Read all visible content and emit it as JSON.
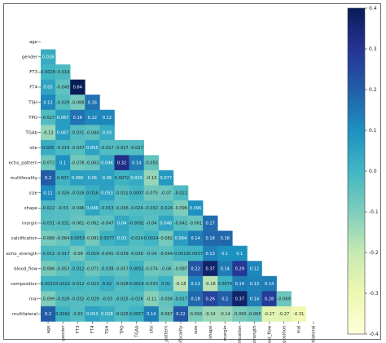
{
  "chart_data": {
    "type": "heatmap",
    "title": "",
    "variables": [
      "age",
      "gender",
      "FT3",
      "FT4",
      "TSH",
      "TPO",
      "TGAb",
      "site",
      "echo_pattern",
      "multifocality",
      "size",
      "shape",
      "margin",
      "calcification",
      "echo_strength",
      "blood_flow",
      "composition",
      "mal",
      "multilateral"
    ],
    "matrix_lower": [
      [],
      [
        "0.026"
      ],
      [
        "0.0028",
        "-0.019"
      ],
      [
        "0.05",
        "-0.049",
        "0.64"
      ],
      [
        "0.12",
        "-0.029",
        "-0.088",
        "0.16"
      ],
      [
        "-0.027",
        "0.067",
        "0.16",
        "0.12",
        "0.12"
      ],
      [
        "-0.13",
        "0.067",
        "-0.031",
        "-0.044",
        "0.03"
      ],
      [
        "0.025",
        "-0.019",
        "-0.037",
        "0.055",
        "-0.027",
        "-0.027",
        "-0.027"
      ],
      [
        "-0.072",
        "0.1",
        "-0.078",
        "-0.062",
        "0.046",
        "0.32",
        "0.14",
        "-0.055"
      ],
      [
        "0.2",
        "0.007",
        "0.066",
        "0.06",
        "0.06",
        "0.0072",
        "0.029",
        "-0.13",
        "0.077"
      ],
      [
        "0.11",
        "-0.026",
        "-0.026",
        "0.016",
        "0.053",
        "-0.032",
        "0.0007",
        "-0.075",
        "-0.07",
        "-0.021"
      ],
      [
        "-0.022",
        "-0.03",
        "-0.046",
        "0.046",
        "-0.013",
        "-0.036",
        "-0.024",
        "-0.032",
        "-0.024",
        "-0.096",
        "0.096"
      ],
      [
        "-0.031",
        "-0.031",
        "-0.061",
        "-0.062",
        "-0.047",
        "0.04",
        "-0.0092",
        "-0.04",
        "0.046",
        "-0.041",
        "-0.061",
        "0.17"
      ],
      [
        "-0.088",
        "-0.064",
        "0.0053",
        "-0.081",
        "0.0077",
        "0.03",
        "-0.024",
        "0.0014",
        "-0.082",
        "0.064",
        "0.14",
        "0.18",
        "0.18"
      ],
      [
        "-0.012",
        "-0.017",
        "-0.08",
        "-0.019",
        "-0.041",
        "-0.039",
        "-0.039",
        "-0.04",
        "-0.044",
        "-0.0015",
        "0.0037",
        "0.13",
        "0.1",
        "0.1"
      ],
      [
        "-0.086",
        "-0.053",
        "-0.012",
        "-0.071",
        "-0.038",
        "-0.057",
        "0.0052",
        "-0.074",
        "-0.06",
        "-0.087",
        "0.22",
        "0.37",
        "0.14",
        "0.29",
        "0.12"
      ],
      [
        "0.0032",
        "0.0022",
        "-0.012",
        "-0.023",
        "0.02",
        "-0.028",
        "0.0019",
        "-0.033",
        "0.01",
        "-0.18",
        "0.13",
        "-0.18",
        "0.0074",
        "0.14",
        "0.13",
        "0.14"
      ],
      [
        "-0.099",
        "-0.028",
        "-0.032",
        "-0.029",
        "-0.03",
        "-0.025",
        "-0.026",
        "-0.11",
        "-0.058",
        "-0.017",
        "0.18",
        "0.26",
        "0.2",
        "0.37",
        "0.14",
        "0.28",
        "-0.069"
      ],
      [
        "0.2",
        "0.0092",
        "-0.03",
        "0.053",
        "0.028",
        "-0.025",
        "0.0057",
        "0.14",
        "-0.067",
        "0.22",
        "-0.093",
        "-0.14",
        "-0.14",
        "-0.093",
        "-0.065",
        "-0.27",
        "-0.27",
        "-0.31"
      ]
    ],
    "colorbar": {
      "min": -0.4,
      "max": 0.4,
      "ticks": [
        "0.4",
        "0.3",
        "0.2",
        "0.1",
        "0.0",
        "-0.1",
        "-0.2",
        "-0.3",
        "-0.4"
      ]
    },
    "colormap": [
      "#ffffd9",
      "#edf8b1",
      "#c7e9b4",
      "#7fcdbb",
      "#41b6c4",
      "#1d91c0",
      "#225ea8",
      "#253494",
      "#081d58"
    ]
  }
}
